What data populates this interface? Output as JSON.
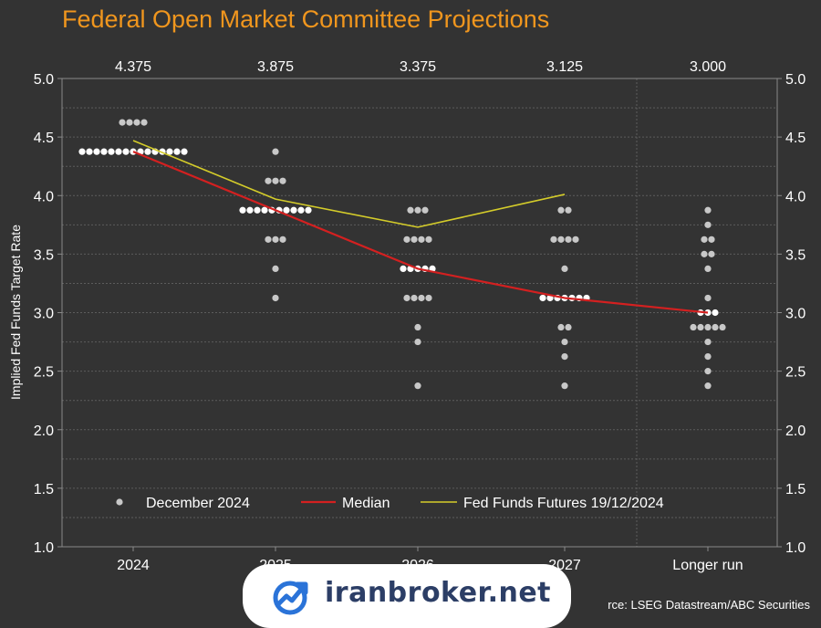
{
  "chart_data": {
    "type": "scatter",
    "title": "Federal Open Market Committee Projections",
    "ylabel": "Implied Fed Funds Target Rate",
    "ylim": [
      1.0,
      5.0
    ],
    "y_ticks": [
      "1.0",
      "1.5",
      "2.0",
      "2.5",
      "3.0",
      "3.5",
      "4.0",
      "4.5",
      "5.0"
    ],
    "grid": "dashed horizontal",
    "legend_position": "bottom-left",
    "categories": [
      "2024",
      "2025",
      "2026",
      "2027",
      "Longer run"
    ],
    "median_labels": [
      "4.375",
      "3.875",
      "3.375",
      "3.125",
      "3.000"
    ],
    "dots": [
      [
        [
          4.625,
          4
        ],
        [
          4.375,
          15
        ]
      ],
      [
        [
          4.375,
          1
        ],
        [
          4.125,
          3
        ],
        [
          3.875,
          10
        ],
        [
          3.625,
          3
        ],
        [
          3.375,
          1
        ],
        [
          3.125,
          1
        ]
      ],
      [
        [
          3.875,
          3
        ],
        [
          3.625,
          4
        ],
        [
          3.375,
          5
        ],
        [
          3.125,
          4
        ],
        [
          2.875,
          1
        ],
        [
          2.75,
          1
        ],
        [
          2.375,
          1
        ]
      ],
      [
        [
          3.875,
          2
        ],
        [
          3.625,
          4
        ],
        [
          3.375,
          1
        ],
        [
          3.125,
          7
        ],
        [
          2.875,
          2
        ],
        [
          2.75,
          1
        ],
        [
          2.625,
          1
        ],
        [
          2.375,
          1
        ]
      ],
      [
        [
          3.875,
          1
        ],
        [
          3.75,
          1
        ],
        [
          3.625,
          2
        ],
        [
          3.5,
          2
        ],
        [
          3.375,
          1
        ],
        [
          3.125,
          1
        ],
        [
          3.0,
          3
        ],
        [
          2.875,
          5
        ],
        [
          2.75,
          1
        ],
        [
          2.625,
          1
        ],
        [
          2.5,
          1
        ],
        [
          2.375,
          1
        ]
      ]
    ],
    "series": [
      {
        "name": "December 2024",
        "kind": "dots",
        "color": "#c8c8c8"
      },
      {
        "name": "Median",
        "kind": "line",
        "color": "#d42020",
        "values": [
          4.375,
          3.875,
          3.375,
          3.125,
          3.0
        ]
      },
      {
        "name": "Fed Funds Futures 19/12/2024",
        "kind": "line",
        "color": "#d4cc2a",
        "values": [
          4.47,
          3.97,
          3.73,
          4.01,
          null
        ]
      }
    ]
  },
  "watermark": {
    "text": "iranbroker.net"
  },
  "source": {
    "text": "rce: LSEG Datastream/ABC Securities"
  }
}
